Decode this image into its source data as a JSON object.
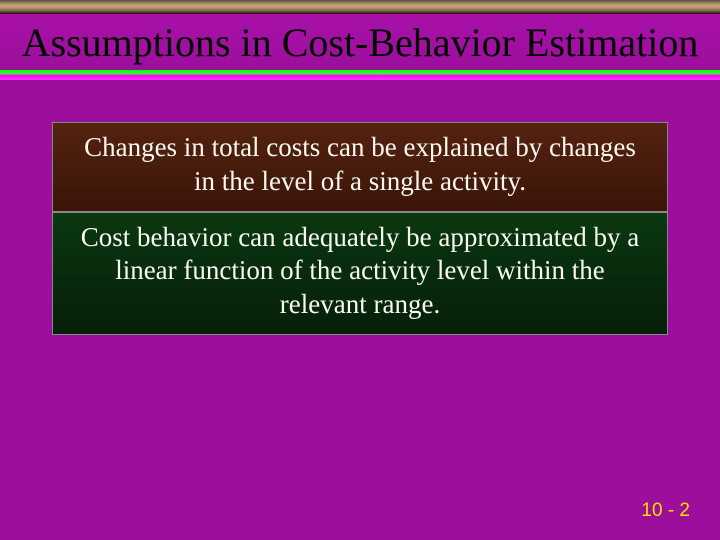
{
  "slide": {
    "title": "Assumptions in Cost-Behavior Estimation",
    "assumption1": "Changes in total costs can be explained by changes in the level of a single activity.",
    "assumption2": "Cost behavior can adequately be approximated by a linear function of the activity level within the relevant range.",
    "page_number": "10 - 2"
  },
  "styling": {
    "background_color": "#9c0f9c",
    "title_color": "#000000",
    "title_fontsize": 40,
    "body_color": "#f8f8f0",
    "body_fontsize": 27,
    "box1_bg_start": "#552210",
    "box1_bg_end": "#3a1508",
    "box2_bg_start": "#0a3810",
    "box2_bg_end": "#061f08",
    "divider_colors": [
      "#00ff00",
      "#ff00ff"
    ],
    "page_number_color": "#ffdd00",
    "banner_colors": [
      "#5a4a3a",
      "#c8a880",
      "#3a2a1a"
    ],
    "font_family": "Times New Roman"
  }
}
